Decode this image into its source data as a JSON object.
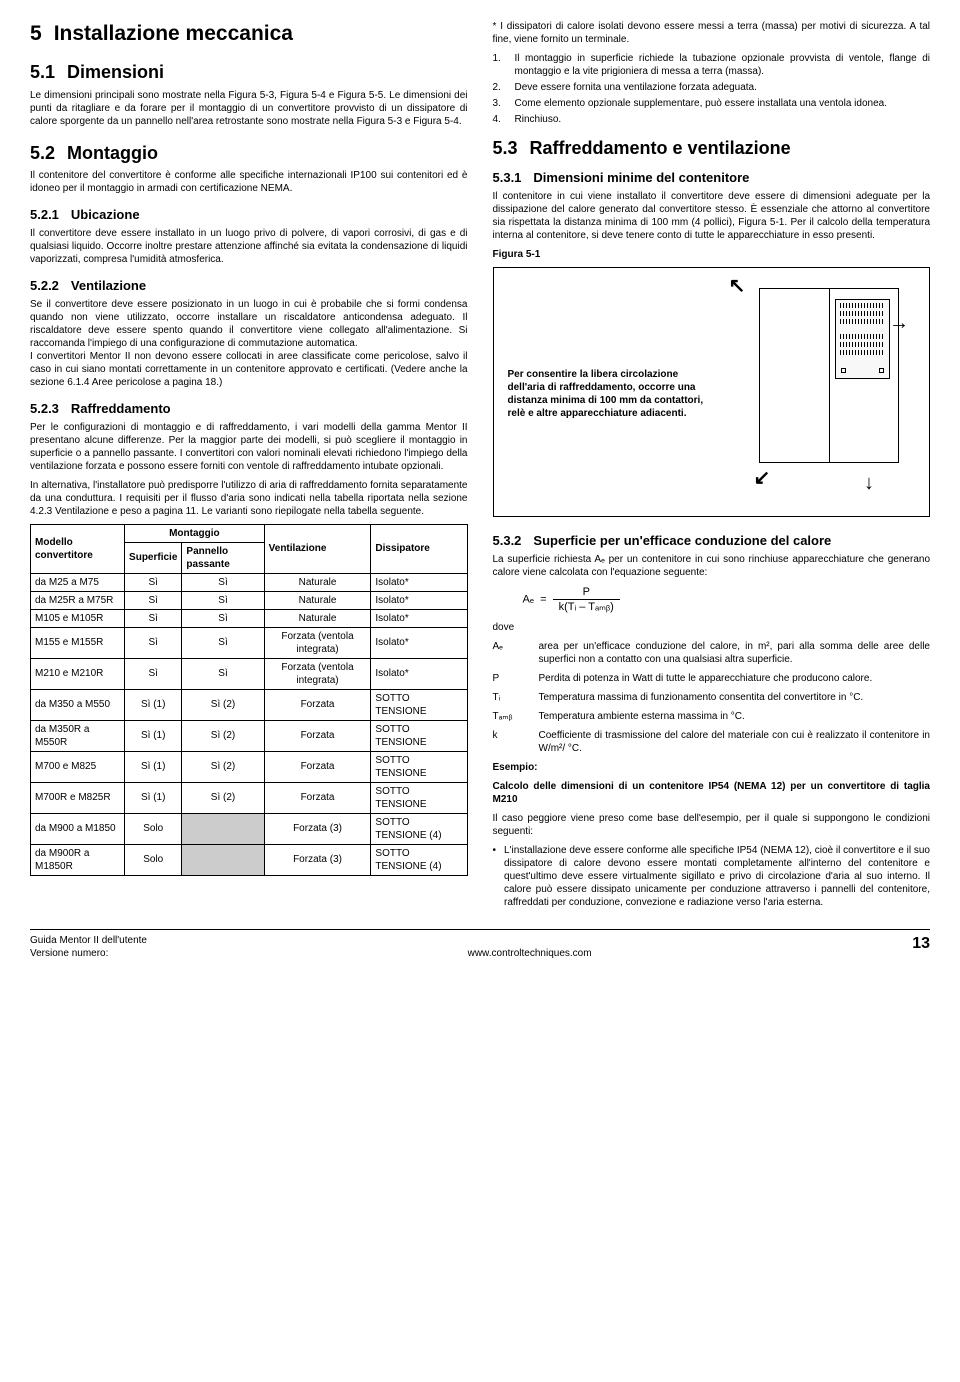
{
  "left": {
    "h1_num": "5",
    "h1": "Installazione meccanica",
    "h2_51_num": "5.1",
    "h2_51": "Dimensioni",
    "p51": "Le dimensioni principali sono mostrate nella Figura 5-3, Figura 5-4 e Figura 5-5. Le dimensioni dei punti da ritagliare e da forare per il montaggio di un convertitore provvisto di un dissipatore di calore sporgente da un pannello nell'area retrostante sono mostrate nella Figura 5-3 e Figura 5-4.",
    "h2_52_num": "5.2",
    "h2_52": "Montaggio",
    "p52": "Il contenitore del convertitore è conforme alle specifiche internazionali IP100 sui contenitori ed è idoneo per il montaggio in armadi con certificazione NEMA.",
    "h3_521_num": "5.2.1",
    "h3_521": "Ubicazione",
    "p521": "Il convertitore deve essere installato in un luogo privo di polvere, di vapori corrosivi, di gas e di qualsiasi liquido. Occorre inoltre prestare attenzione affinché sia evitata la condensazione di liquidi vaporizzati, compresa l'umidità atmosferica.",
    "h3_522_num": "5.2.2",
    "h3_522": "Ventilazione",
    "p522": "Se il convertitore deve essere posizionato in un luogo in cui è probabile che si formi condensa quando non viene utilizzato, occorre installare un riscaldatore anticondensa adeguato. Il riscaldatore deve essere spento quando il convertitore viene collegato all'alimentazione. Si raccomanda l'impiego di una configurazione di commutazione automatica.\nI convertitori Mentor II non devono essere collocati in aree classificate come pericolose, salvo il caso in cui siano montati correttamente in un contenitore approvato e certificati. (Vedere anche la sezione 6.1.4 Aree pericolose a pagina 18.)",
    "h3_523_num": "5.2.3",
    "h3_523": "Raffreddamento",
    "p523a": "Per le configurazioni di montaggio e di raffreddamento, i vari modelli della gamma Mentor II presentano alcune differenze. Per la maggior parte dei modelli, si può scegliere il montaggio in superficie o a pannello passante. I convertitori con valori nominali elevati richiedono l'impiego della ventilazione forzata e possono essere forniti con ventole di raffreddamento intubate opzionali.",
    "p523b": "In alternativa, l'installatore può predisporre l'utilizzo di aria di raffreddamento fornita separatamente da una conduttura. I requisiti per il flusso d'aria sono indicati nella tabella riportata nella sezione 4.2.3 Ventilazione e peso a pagina 11. Le varianti sono riepilogate nella tabella seguente.",
    "table": {
      "header": {
        "model": "Modello convertitore",
        "mounting": "Montaggio",
        "surface": "Superficie",
        "panel": "Pannello passante",
        "vent": "Ventilazione",
        "heatsink": "Dissipatore"
      },
      "rows": [
        {
          "m": "da M25 a M75",
          "s": "Sì",
          "p": "Sì",
          "v": "Naturale",
          "h": "Isolato*"
        },
        {
          "m": "da M25R a M75R",
          "s": "Sì",
          "p": "Sì",
          "v": "Naturale",
          "h": "Isolato*"
        },
        {
          "m": "M105 e M105R",
          "s": "Sì",
          "p": "Sì",
          "v": "Naturale",
          "h": "Isolato*"
        },
        {
          "m": "M155 e M155R",
          "s": "Sì",
          "p": "Sì",
          "v": "Forzata (ventola integrata)",
          "h": "Isolato*"
        },
        {
          "m": "M210 e M210R",
          "s": "Sì",
          "p": "Sì",
          "v": "Forzata (ventola integrata)",
          "h": "Isolato*"
        },
        {
          "m": "da M350 a M550",
          "s": "Sì (1)",
          "p": "Sì (2)",
          "v": "Forzata",
          "h": "SOTTO TENSIONE"
        },
        {
          "m": "da M350R a M550R",
          "s": "Sì (1)",
          "p": "Sì (2)",
          "v": "Forzata",
          "h": "SOTTO TENSIONE"
        },
        {
          "m": "M700 e M825",
          "s": "Sì (1)",
          "p": "Sì (2)",
          "v": "Forzata",
          "h": "SOTTO TENSIONE"
        },
        {
          "m": "M700R e M825R",
          "s": "Sì (1)",
          "p": "Sì (2)",
          "v": "Forzata",
          "h": "SOTTO TENSIONE"
        },
        {
          "m": "da M900 a M1850",
          "s": "Solo",
          "p": "",
          "grey_p": true,
          "v": "Forzata (3)",
          "h": "SOTTO TENSIONE (4)"
        },
        {
          "m": "da M900R a M1850R",
          "s": "Solo",
          "p": "",
          "grey_p": true,
          "v": "Forzata (3)",
          "h": "SOTTO TENSIONE (4)"
        }
      ]
    }
  },
  "right": {
    "note_top": "* I dissipatori di calore isolati devono essere messi a terra (massa) per motivi di sicurezza. A tal fine, viene fornito un terminale.",
    "list": [
      "Il montaggio in superficie richiede la tubazione opzionale provvista di ventole, flange di montaggio e la vite prigioniera di messa a terra (massa).",
      "Deve essere fornita una ventilazione forzata adeguata.",
      "Come elemento opzionale supplementare, può essere installata una ventola idonea.",
      "Rinchiuso."
    ],
    "h2_53_num": "5.3",
    "h2_53": "Raffreddamento e ventilazione",
    "h3_531_num": "5.3.1",
    "h3_531": "Dimensioni minime del contenitore",
    "p531": "Il contenitore in cui viene installato il convertitore deve essere di dimensioni adeguate per la dissipazione del calore generato dal convertitore stesso. È essenziale che attorno al convertitore sia rispettata la distanza minima di 100 mm (4 pollici), Figura 5-1. Per il calcolo della temperatura interna al contenitore, si deve tenere conto di tutte le apparecchiature in esso presenti.",
    "figlabel": "Figura 5-1",
    "figcaption": "Per consentire la libera circolazione dell'aria di raffreddamento, occorre una distanza minima di 100 mm da contattori, relè e altre apparecchiature adiacenti.",
    "h3_532_num": "5.3.2",
    "h3_532": "Superficie per un'efficace conduzione del calore",
    "p532": "La superficie richiesta Aₑ per un contenitore in cui sono rinchiuse apparecchiature che generano calore viene calcolata con l'equazione seguente:",
    "formula_lhs": "Aₑ",
    "formula_eq": "=",
    "formula_rhs_top": "P",
    "formula_rhs_bot": "k(Tᵢ – Tₐₘᵦ)",
    "dove": "dove",
    "defs": [
      {
        "sym": "Aₑ",
        "txt": "area per un'efficace conduzione del calore, in m², pari alla somma delle aree delle superfici non a contatto con una qualsiasi altra superficie."
      },
      {
        "sym": "P",
        "txt": "Perdita di potenza in Watt di tutte le apparecchiature che producono calore."
      },
      {
        "sym": "Tᵢ",
        "txt": "Temperatura massima di funzionamento consentita del convertitore in °C."
      },
      {
        "sym": "Tₐₘᵦ",
        "txt": "Temperatura ambiente esterna massima in °C."
      },
      {
        "sym": "k",
        "txt": "Coefficiente di trasmissione del calore del materiale con cui è realizzato il contenitore in W/m²/ °C."
      }
    ],
    "esempio_h": "Esempio:",
    "esempio_b": "Calcolo delle dimensioni di un contenitore IP54 (NEMA 12) per un convertitore di taglia M210",
    "esempio_p": "Il caso peggiore viene preso come base dell'esempio, per il quale si suppongono le condizioni seguenti:",
    "bullet": "L'installazione deve essere conforme alle specifiche IP54 (NEMA 12), cioè il convertitore e il suo dissipatore di calore devono essere montati completamente all'interno del contenitore e quest'ultimo deve essere virtualmente sigillato e privo di circolazione d'aria al suo interno. Il calore può essere dissipato unicamente per conduzione attraverso i pannelli del contenitore, raffreddati per conduzione, convezione e radiazione verso l'aria esterna."
  },
  "footer": {
    "left1": "Guida Mentor II dell'utente",
    "left2": "Versione numero:",
    "center": "www.controltechniques.com",
    "page": "13"
  }
}
